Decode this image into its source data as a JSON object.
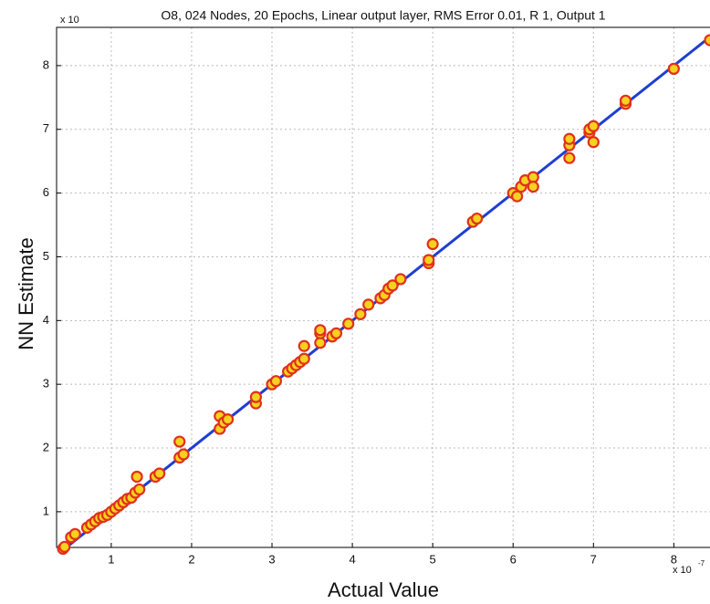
{
  "chart_data": {
    "type": "scatter",
    "title": "O8, 024 Nodes,  20 Epochs, Linear output layer, RMS Error 0.01, R 1, Output 1",
    "x_label": "Actual Value",
    "y_label": "NN Estimate",
    "x_multiplier": "x 10",
    "x_exponent": "-7",
    "y_multiplier": "x 10",
    "x": [
      0.4,
      0.42,
      0.5,
      0.55,
      0.7,
      0.75,
      0.8,
      0.85,
      0.9,
      0.95,
      1.0,
      1.05,
      1.1,
      1.15,
      1.2,
      1.25,
      1.3,
      1.32,
      1.35,
      1.55,
      1.6,
      1.85,
      1.85,
      1.9,
      2.35,
      2.35,
      2.4,
      2.45,
      2.8,
      2.8,
      3.0,
      3.05,
      3.2,
      3.25,
      3.3,
      3.35,
      3.4,
      3.4,
      3.6,
      3.6,
      3.6,
      3.75,
      3.8,
      3.95,
      4.1,
      4.2,
      4.35,
      4.4,
      4.45,
      4.5,
      4.6,
      4.95,
      4.95,
      5.0,
      5.5,
      5.55,
      6.0,
      6.05,
      6.1,
      6.15,
      6.25,
      6.25,
      6.7,
      6.7,
      6.7,
      6.95,
      6.95,
      7.0,
      7.0,
      7.4,
      7.4,
      8.0,
      8.45
    ],
    "values": [
      0.42,
      0.45,
      0.6,
      0.65,
      0.75,
      0.8,
      0.85,
      0.9,
      0.92,
      0.95,
      1.0,
      1.05,
      1.1,
      1.15,
      1.2,
      1.22,
      1.3,
      1.55,
      1.35,
      1.55,
      1.6,
      1.85,
      2.1,
      1.9,
      2.3,
      2.5,
      2.4,
      2.45,
      2.7,
      2.8,
      3.0,
      3.05,
      3.2,
      3.25,
      3.3,
      3.35,
      3.4,
      3.6,
      3.65,
      3.8,
      3.85,
      3.75,
      3.8,
      3.95,
      4.1,
      4.25,
      4.35,
      4.4,
      4.5,
      4.55,
      4.65,
      4.9,
      4.95,
      5.2,
      5.55,
      5.6,
      6.0,
      5.95,
      6.1,
      6.2,
      6.25,
      6.1,
      6.55,
      6.75,
      6.85,
      6.95,
      7.0,
      6.8,
      7.05,
      7.4,
      7.45,
      7.95,
      8.4
    ],
    "color": "#f5d21e",
    "edge_color": "#e2301c",
    "fit_line": {
      "x": [
        0.4,
        8.45
      ],
      "values": [
        0.4,
        8.45
      ],
      "color": "#1e3ed2"
    },
    "xlim": [
      0.32,
      8.45
    ],
    "ylim": [
      0.44,
      8.6
    ],
    "xticks": [
      1,
      2,
      3,
      4,
      5,
      6,
      7,
      8
    ],
    "yticks": [
      1,
      2,
      3,
      4,
      5,
      6,
      7,
      8
    ],
    "grid": true
  }
}
